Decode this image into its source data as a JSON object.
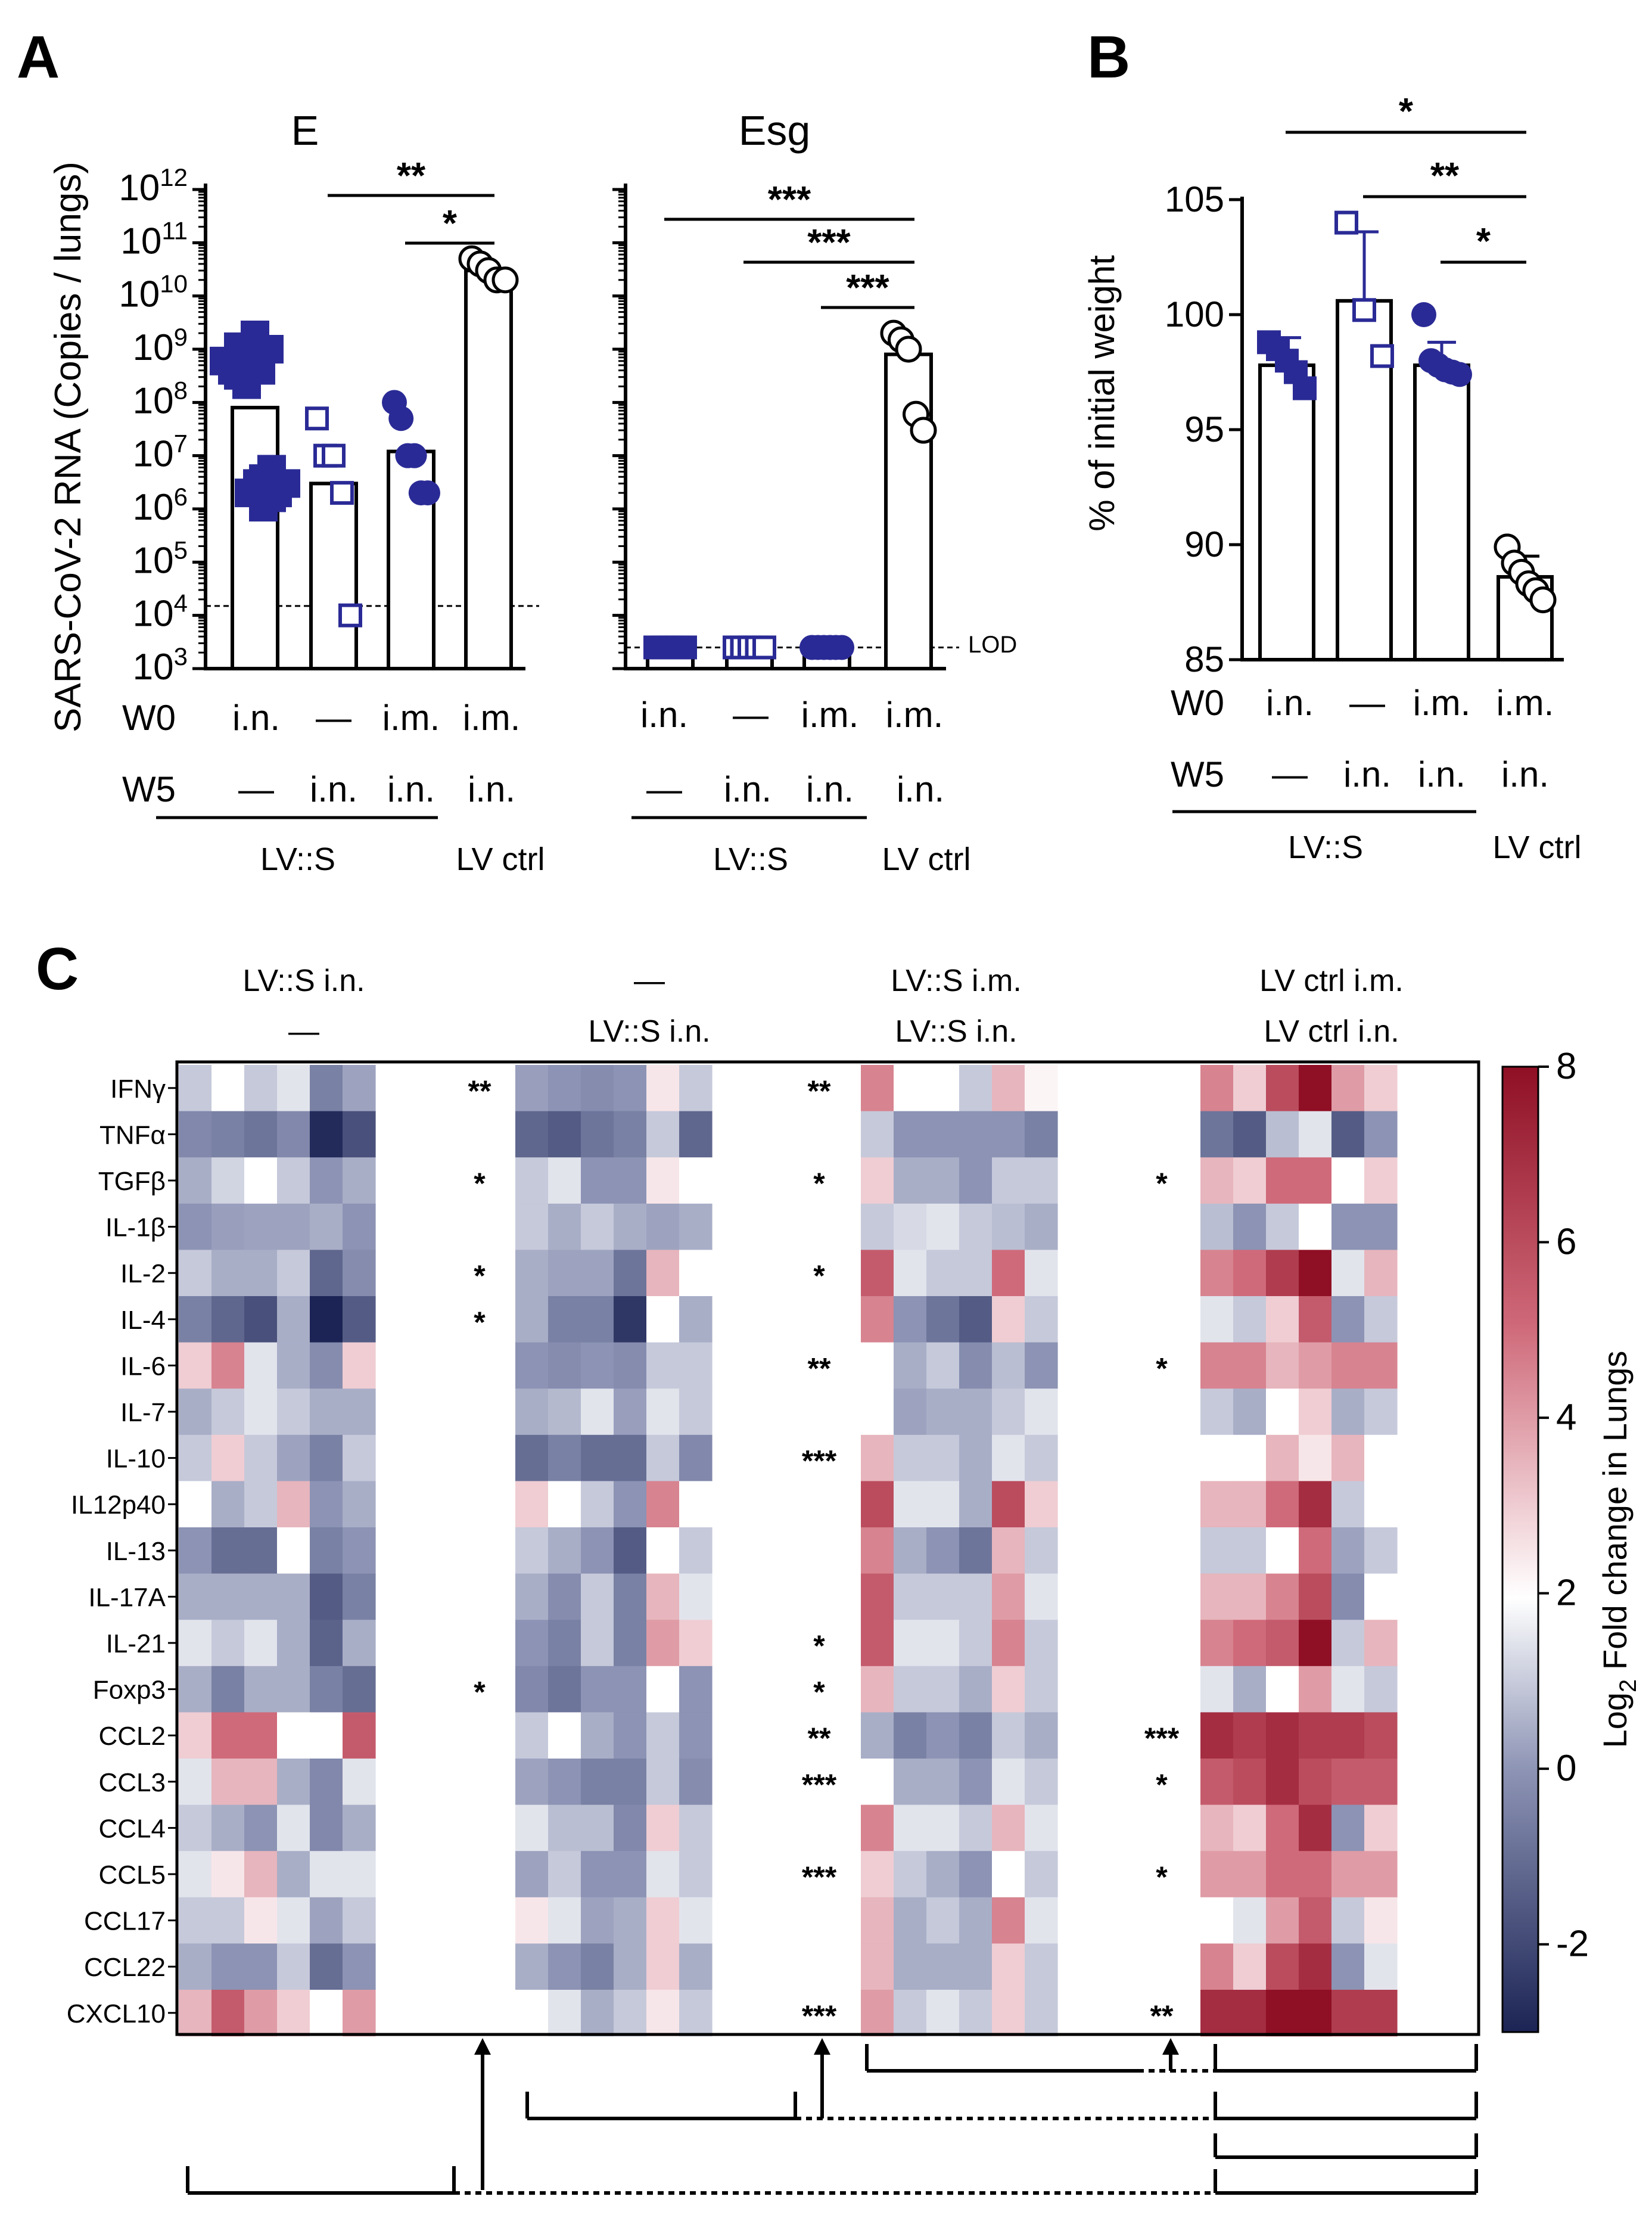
{
  "panels": {
    "a": "A",
    "b": "B",
    "c": "C"
  },
  "chart_data": [
    {
      "type": "bar",
      "panel": "A",
      "title": "E",
      "ylabel": "SARS-CoV-2 RNA (Copies / lungs)",
      "yscale": "log",
      "ylim": [
        1000,
        1000000000000
      ],
      "yticks": [
        {
          "base": "10",
          "exp": "3"
        },
        {
          "base": "10",
          "exp": "4"
        },
        {
          "base": "10",
          "exp": "5"
        },
        {
          "base": "10",
          "exp": "6"
        },
        {
          "base": "10",
          "exp": "7"
        },
        {
          "base": "10",
          "exp": "8"
        },
        {
          "base": "10",
          "exp": "9"
        },
        {
          "base": "10",
          "exp": "10"
        },
        {
          "base": "10",
          "exp": "11"
        },
        {
          "base": "10",
          "exp": "12"
        }
      ],
      "lod": 15000,
      "groups": [
        {
          "w0": "i.n.",
          "w5": "—",
          "bar": 80000000,
          "points": [
            600000000,
            400000000,
            1000000000,
            2000000,
            3000000
          ]
        },
        {
          "w0": "—",
          "w5": "i.n.",
          "bar": 3000000,
          "points": [
            50000000,
            10000000,
            10000000,
            2000000,
            10000
          ]
        },
        {
          "w0": "i.m.",
          "w5": "i.n.",
          "bar": 12000000,
          "points": [
            100000000,
            50000000,
            10000000,
            10000000,
            2000000,
            2000000
          ]
        },
        {
          "w0": "i.m.",
          "w5": "i.n.",
          "bar": 30000000000,
          "points": [
            50000000000,
            40000000000,
            30000000000,
            20000000000,
            20000000000
          ]
        }
      ],
      "significance": [
        {
          "from": 1,
          "to": 3,
          "label": "**"
        },
        {
          "from": 2,
          "to": 3,
          "label": "*"
        }
      ]
    },
    {
      "type": "bar",
      "panel": "A",
      "title": "Esg",
      "yscale": "log",
      "ylim": [
        1000,
        1000000000000
      ],
      "lod_label": "LOD",
      "lod": 2500,
      "groups": [
        {
          "w0": "i.n.",
          "w5": "—",
          "bar": 2500,
          "points": [
            2500,
            2500,
            2500,
            2500,
            2500
          ]
        },
        {
          "w0": "—",
          "w5": "i.n.",
          "bar": 2500,
          "points": [
            2500,
            2500,
            2500,
            2500,
            2500
          ]
        },
        {
          "w0": "i.m.",
          "w5": "i.n.",
          "bar": 2500,
          "points": [
            2500,
            2500,
            2500,
            2500,
            2500,
            2500
          ]
        },
        {
          "w0": "i.m.",
          "w5": "i.n.",
          "bar": 800000000,
          "points": [
            2000000000,
            1500000000,
            1000000000,
            60000000,
            30000000
          ]
        }
      ],
      "significance": [
        {
          "from": 0,
          "to": 3,
          "label": "***"
        },
        {
          "from": 1,
          "to": 3,
          "label": "***"
        },
        {
          "from": 2,
          "to": 3,
          "label": "***"
        }
      ]
    },
    {
      "type": "bar",
      "panel": "B",
      "ylabel": "% of initial weight",
      "ylim": [
        85,
        105
      ],
      "yticks": [
        "85",
        "90",
        "95",
        "100",
        "105"
      ],
      "groups": [
        {
          "w0": "i.n.",
          "w5": "—",
          "bar": 97.8,
          "err": 1.2,
          "points": [
            98.8,
            98.5,
            98.0,
            97.5,
            96.8
          ]
        },
        {
          "w0": "—",
          "w5": "i.n.",
          "bar": 100.6,
          "err": 3.0,
          "points": [
            104.0,
            100.2,
            98.2
          ]
        },
        {
          "w0": "i.m.",
          "w5": "i.n.",
          "bar": 97.8,
          "err": 1.0,
          "points": [
            100.0,
            98.0,
            97.8,
            97.6,
            97.5,
            97.4
          ]
        },
        {
          "w0": "i.m.",
          "w5": "i.n.",
          "bar": 88.6,
          "err": 0.9,
          "points": [
            89.9,
            89.2,
            88.8,
            88.3,
            88.0,
            87.6
          ]
        }
      ],
      "significance": [
        {
          "from": 0,
          "to": 3,
          "label": "*"
        },
        {
          "from": 1,
          "to": 3,
          "label": "**"
        },
        {
          "from": 2,
          "to": 3,
          "label": "*"
        }
      ]
    },
    {
      "type": "heatmap",
      "panel": "C",
      "colorbar_label_main": "Log",
      "colorbar_label_sub": "2",
      "colorbar_label_rest": " Fold change in Lungs",
      "colorbar_range": [
        -3,
        8
      ],
      "colorbar_ticks": [
        "-2",
        "0",
        "2",
        "4",
        "6",
        "8"
      ],
      "group_headers": [
        {
          "line1": "LV::S i.n.",
          "line2": "—"
        },
        {
          "line1": "—",
          "line2": "LV::S i.n."
        },
        {
          "line1": "LV::S i.m.",
          "line2": "LV::S i.n."
        },
        {
          "line1": "LV ctrl i.m.",
          "line2": "LV ctrl i.n."
        }
      ],
      "rows": [
        "IFNγ",
        "TNFα",
        "TGFβ",
        "IL-1β",
        "IL-2",
        "IL-4",
        "IL-6",
        "IL-7",
        "IL-10",
        "IL12p40",
        "IL-13",
        "IL-17A",
        "IL-21",
        "Foxp3",
        "CCL2",
        "CCL3",
        "CCL4",
        "CCL5",
        "CCL17",
        "CCL22",
        "CXCL10"
      ],
      "values": [
        [
          [
            1.0,
            2.0,
            1.0,
            1.5,
            -0.5,
            0.3
          ],
          [
            0.2,
            0.0,
            -0.2,
            0.0,
            2.5,
            1.0
          ],
          [
            4.5,
            2.0,
            2.0,
            1.0,
            3.5,
            2.2
          ],
          [
            4.5,
            3.0,
            6.0,
            8.0,
            4.0,
            3.0
          ]
        ],
        [
          [
            -0.3,
            -0.5,
            -0.8,
            -0.3,
            -2.8,
            -1.8
          ],
          [
            -1.2,
            -1.5,
            -0.8,
            -0.5,
            1.0,
            -1.2
          ],
          [
            1.0,
            0.0,
            0.0,
            0.0,
            0.0,
            -0.5
          ],
          [
            -0.8,
            -1.5,
            0.8,
            1.5,
            -1.5,
            0.0
          ]
        ],
        [
          [
            0.5,
            1.2,
            2.0,
            1.0,
            0.0,
            0.5
          ],
          [
            1.0,
            1.5,
            0.0,
            0.0,
            2.5,
            2.0
          ],
          [
            3.0,
            0.5,
            0.5,
            0.0,
            1.0,
            1.0
          ],
          [
            3.5,
            3.0,
            5.0,
            5.0,
            2.0,
            3.0
          ]
        ],
        [
          [
            0.0,
            0.2,
            0.3,
            0.3,
            0.5,
            0.0
          ],
          [
            1.0,
            0.5,
            1.0,
            0.5,
            0.3,
            0.5
          ],
          [
            1.0,
            1.3,
            1.5,
            1.0,
            0.8,
            0.5
          ],
          [
            0.8,
            0.0,
            1.0,
            2.0,
            0.0,
            0.0
          ]
        ],
        [
          [
            1.0,
            0.5,
            0.5,
            1.0,
            -1.2,
            -0.2
          ],
          [
            0.5,
            0.3,
            0.3,
            -0.8,
            3.5,
            2.0
          ],
          [
            5.5,
            1.5,
            1.0,
            1.0,
            5.0,
            1.5
          ],
          [
            4.5,
            5.0,
            6.5,
            8.0,
            1.5,
            3.5
          ]
        ],
        [
          [
            -0.5,
            -1.2,
            -1.8,
            0.5,
            -3.0,
            -1.5
          ],
          [
            0.5,
            -0.5,
            -0.5,
            -2.5,
            2.0,
            0.5
          ],
          [
            4.5,
            0.0,
            -0.8,
            -1.5,
            3.0,
            1.0
          ],
          [
            1.5,
            1.0,
            3.0,
            5.5,
            0.0,
            1.0
          ]
        ],
        [
          [
            3.0,
            4.5,
            1.5,
            0.5,
            -0.2,
            3.0
          ],
          [
            0.0,
            -0.2,
            0.0,
            -0.2,
            1.0,
            1.0
          ],
          [
            2.0,
            0.5,
            1.0,
            -0.2,
            0.8,
            0.0
          ],
          [
            4.5,
            4.5,
            3.5,
            4.0,
            4.5,
            4.5
          ]
        ],
        [
          [
            0.5,
            1.0,
            1.5,
            1.0,
            0.5,
            0.5
          ],
          [
            0.5,
            0.7,
            1.5,
            0.2,
            1.5,
            1.0
          ],
          [
            2.0,
            0.3,
            0.5,
            0.5,
            1.0,
            1.5
          ],
          [
            1.0,
            0.5,
            2.0,
            3.0,
            0.5,
            1.0
          ]
        ],
        [
          [
            1.0,
            3.0,
            1.0,
            0.3,
            -0.5,
            1.0
          ],
          [
            -1.0,
            -0.5,
            -1.0,
            -1.0,
            1.0,
            -0.3
          ],
          [
            3.5,
            1.0,
            1.0,
            0.5,
            1.5,
            1.0
          ],
          [
            2.0,
            2.0,
            3.5,
            2.5,
            3.5,
            2.0
          ]
        ],
        [
          [
            2.0,
            0.5,
            1.0,
            3.5,
            0.0,
            0.5
          ],
          [
            3.0,
            2.0,
            1.0,
            0.0,
            4.5,
            2.0
          ],
          [
            6.0,
            1.5,
            1.5,
            0.5,
            6.0,
            3.0
          ],
          [
            3.5,
            3.5,
            5.0,
            7.0,
            1.0,
            2.0
          ]
        ],
        [
          [
            0.0,
            -1.0,
            -1.0,
            2.0,
            -0.5,
            0.0
          ],
          [
            1.0,
            0.5,
            0.0,
            -1.5,
            2.0,
            1.0
          ],
          [
            4.5,
            0.5,
            0.0,
            -0.8,
            3.5,
            1.0
          ],
          [
            1.0,
            1.0,
            2.0,
            5.0,
            0.3,
            1.0
          ]
        ],
        [
          [
            0.5,
            0.5,
            0.5,
            0.5,
            -1.5,
            -0.5
          ],
          [
            0.5,
            -0.2,
            1.0,
            -0.5,
            3.5,
            1.5
          ],
          [
            5.5,
            1.0,
            1.0,
            1.0,
            4.0,
            1.5
          ],
          [
            3.5,
            3.5,
            4.5,
            6.0,
            -0.2,
            2.0
          ]
        ],
        [
          [
            1.5,
            1.0,
            1.5,
            0.5,
            -1.3,
            0.5
          ],
          [
            0.0,
            -0.5,
            1.0,
            -0.5,
            4.0,
            3.0
          ],
          [
            5.5,
            1.5,
            1.5,
            1.0,
            4.5,
            1.0
          ],
          [
            4.5,
            5.0,
            5.5,
            8.0,
            1.0,
            3.5
          ]
        ],
        [
          [
            0.5,
            -0.5,
            0.5,
            0.5,
            -0.5,
            -1.0
          ],
          [
            -0.3,
            -0.8,
            0.0,
            0.0,
            2.0,
            0.0
          ],
          [
            3.5,
            1.0,
            1.0,
            0.5,
            3.0,
            1.0
          ],
          [
            1.5,
            0.5,
            2.0,
            4.0,
            1.5,
            1.0
          ]
        ],
        [
          [
            3.0,
            5.0,
            5.0,
            2.0,
            2.0,
            5.5
          ],
          [
            1.0,
            2.0,
            0.5,
            0.0,
            1.0,
            0.0
          ],
          [
            0.5,
            -0.5,
            0.0,
            -0.5,
            1.0,
            0.5
          ],
          [
            7.0,
            6.5,
            7.0,
            6.5,
            6.5,
            6.0
          ]
        ],
        [
          [
            1.5,
            3.5,
            3.5,
            0.5,
            -0.3,
            1.5
          ],
          [
            0.3,
            0.0,
            -0.5,
            -0.5,
            1.0,
            -0.2
          ],
          [
            2.0,
            0.5,
            0.5,
            0.0,
            1.5,
            1.0
          ],
          [
            5.5,
            6.0,
            7.0,
            6.0,
            5.5,
            5.5
          ]
        ],
        [
          [
            1.0,
            0.5,
            0.0,
            1.5,
            -0.3,
            0.5
          ],
          [
            1.5,
            0.8,
            0.8,
            -0.3,
            3.0,
            1.0
          ],
          [
            4.5,
            1.5,
            1.5,
            1.0,
            3.5,
            1.5
          ],
          [
            3.5,
            3.0,
            5.0,
            7.0,
            0.0,
            3.0
          ]
        ],
        [
          [
            1.5,
            2.5,
            3.5,
            0.5,
            1.5,
            1.5
          ],
          [
            0.3,
            1.0,
            0.0,
            0.0,
            1.5,
            1.0
          ],
          [
            3.0,
            1.0,
            0.5,
            0.0,
            2.0,
            1.0
          ],
          [
            4.0,
            4.0,
            5.0,
            5.0,
            4.0,
            4.0
          ]
        ],
        [
          [
            1.0,
            1.0,
            2.5,
            1.5,
            0.3,
            1.0
          ],
          [
            2.5,
            1.5,
            0.3,
            0.5,
            3.0,
            1.5
          ],
          [
            3.5,
            0.5,
            1.0,
            0.5,
            4.5,
            1.5
          ],
          [
            2.0,
            1.5,
            4.0,
            5.5,
            1.0,
            2.5
          ]
        ],
        [
          [
            0.5,
            0.0,
            0.0,
            1.0,
            -1.0,
            0.0
          ],
          [
            0.5,
            0.0,
            -0.5,
            0.5,
            3.0,
            0.5
          ],
          [
            3.5,
            0.5,
            0.5,
            0.5,
            3.0,
            1.0
          ],
          [
            4.5,
            3.0,
            6.0,
            7.0,
            0.0,
            1.5
          ]
        ],
        [
          [
            3.5,
            5.5,
            4.0,
            3.0,
            2.0,
            4.0
          ],
          [
            2.0,
            1.5,
            0.5,
            1.0,
            2.5,
            1.0
          ],
          [
            4.0,
            1.0,
            1.5,
            1.0,
            3.0,
            1.0
          ],
          [
            7.0,
            7.0,
            8.0,
            8.0,
            6.5,
            6.5
          ]
        ]
      ],
      "stars": [
        [
          "**",
          "",
          "*",
          "",
          "*",
          "*",
          "",
          "",
          "",
          "",
          "",
          "",
          "",
          "*",
          "",
          "",
          "",
          "",
          "",
          "",
          ""
        ],
        [
          "**",
          "",
          "*",
          "",
          "*",
          "",
          "**",
          "",
          "***",
          "",
          "",
          "",
          "*",
          "*",
          "**",
          "***",
          "",
          "***",
          "",
          "",
          "***"
        ],
        [
          "",
          "",
          "*",
          "",
          "",
          "",
          "*",
          "",
          "",
          "",
          "",
          "",
          "",
          "",
          "***",
          "*",
          "",
          "*",
          "",
          "",
          "**"
        ]
      ]
    }
  ],
  "labels": {
    "w0": "W0",
    "w5": "W5",
    "lvs": "LV::S",
    "lvctrl": "LV ctrl"
  }
}
